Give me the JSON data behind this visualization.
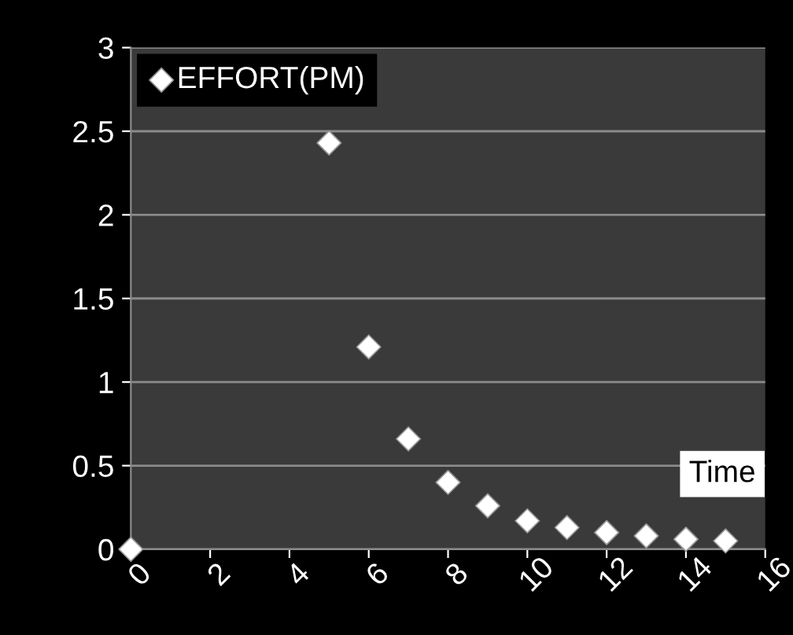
{
  "chart_data": {
    "type": "scatter",
    "xlabel": "Time",
    "x": [
      0,
      5,
      6,
      7,
      8,
      9,
      10,
      11,
      12,
      13,
      14,
      15
    ],
    "series": [
      {
        "name": "EFFORT(PM)",
        "color": "#ffffff",
        "values": [
          0,
          2.43,
          1.21,
          0.66,
          0.4,
          0.26,
          0.17,
          0.13,
          0.1,
          0.08,
          0.06,
          0.05
        ]
      }
    ],
    "xlim": [
      0,
      16
    ],
    "xticks": [
      0,
      2,
      4,
      6,
      8,
      10,
      12,
      14,
      16
    ],
    "ylim": [
      0,
      3
    ],
    "yticks": [
      0,
      0.5,
      1,
      1.5,
      2,
      2.5,
      3
    ],
    "grid": "y",
    "legend": "top left",
    "marker": "diamond"
  }
}
